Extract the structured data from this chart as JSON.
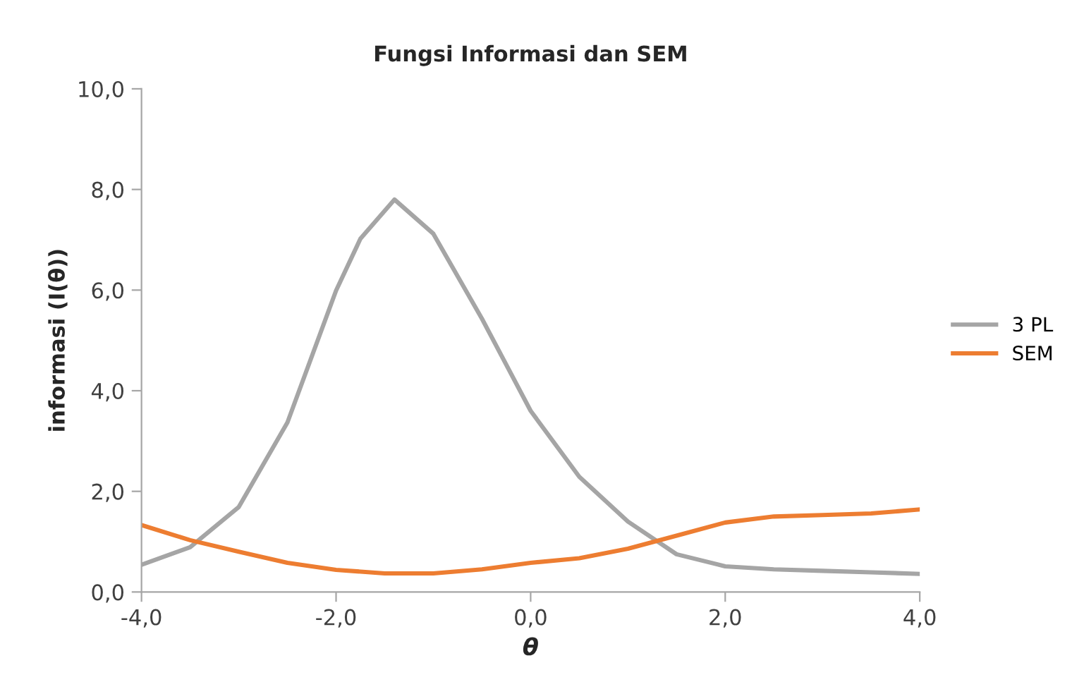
{
  "chart_data": {
    "type": "line",
    "title": "Fungsi Informasi dan SEM",
    "xlabel": "θ",
    "ylabel": "informasi (I(θ))",
    "xlim": [
      -4,
      4
    ],
    "ylim": [
      0,
      10
    ],
    "xticks": [
      {
        "value": -4,
        "label": "-4,0"
      },
      {
        "value": -2,
        "label": "-2,0"
      },
      {
        "value": 0,
        "label": "0,0"
      },
      {
        "value": 2,
        "label": "2,0"
      },
      {
        "value": 4,
        "label": "4,0"
      }
    ],
    "yticks": [
      {
        "value": 0,
        "label": "0,0"
      },
      {
        "value": 2,
        "label": "2,0"
      },
      {
        "value": 4,
        "label": "4,0"
      },
      {
        "value": 6,
        "label": "6,0"
      },
      {
        "value": 8,
        "label": "8,0"
      },
      {
        "value": 10,
        "label": "10,0"
      }
    ],
    "grid": false,
    "legend": "right",
    "marker": "none",
    "line_style": "solid",
    "series": [
      {
        "name": "3 PL",
        "color": "#a5a5a5",
        "x": [
          -4,
          -3.5,
          -3,
          -2.5,
          -2,
          -1.75,
          -1.4,
          -1,
          -0.5,
          0,
          0.5,
          1,
          1.5,
          2,
          2.5,
          3,
          3.5,
          4
        ],
        "values": [
          0.54,
          0.89,
          1.69,
          3.37,
          5.99,
          7.02,
          7.8,
          7.12,
          5.43,
          3.6,
          2.29,
          1.4,
          0.75,
          0.51,
          0.45,
          0.42,
          0.39,
          0.36
        ]
      },
      {
        "name": "SEM",
        "color": "#ed7d31",
        "x": [
          -4,
          -3.5,
          -3,
          -2.5,
          -2,
          -1.5,
          -1,
          -0.5,
          0,
          0.5,
          1,
          1.5,
          2,
          2.5,
          3,
          3.5,
          4
        ],
        "values": [
          1.33,
          1.03,
          0.8,
          0.58,
          0.44,
          0.37,
          0.37,
          0.45,
          0.58,
          0.67,
          0.86,
          1.12,
          1.38,
          1.5,
          1.53,
          1.56,
          1.64
        ]
      }
    ]
  }
}
